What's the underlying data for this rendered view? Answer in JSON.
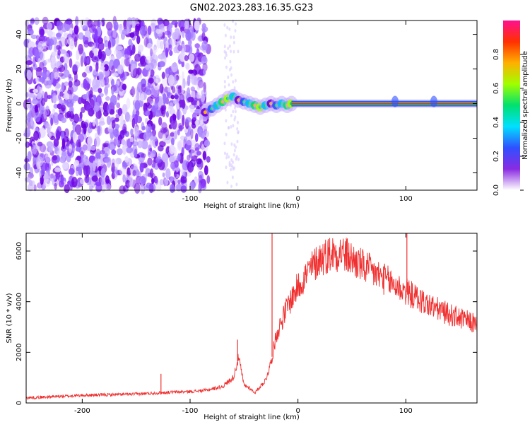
{
  "figure": {
    "title": "GN02.2023.283.16.35.G23"
  },
  "colors": {
    "snr_line": "#f03030",
    "frame": "#000000",
    "carrier": "#e8303a"
  },
  "chart_data": [
    {
      "type": "heatmap",
      "xlabel": "Height of straight line (km)",
      "ylabel": "Frequency (Hz)",
      "xlim": [
        -252,
        166
      ],
      "ylim": [
        -50,
        48
      ],
      "xticks": [
        -200,
        -100,
        0,
        100
      ],
      "yticks": [
        -40,
        -20,
        0,
        20,
        40
      ],
      "noise_region_x": [
        -252,
        -83
      ],
      "sparse_region_x": [
        -68,
        -55
      ],
      "trace": {
        "x": [
          -86,
          -80,
          -75,
          -70,
          -65,
          -60,
          -55,
          -50,
          -45,
          -40,
          -35,
          -30,
          -25,
          -20,
          -15,
          -10,
          -6
        ],
        "y": [
          -5,
          -3,
          -1,
          1,
          3,
          4,
          2,
          1,
          0,
          -1,
          -2,
          -1,
          0,
          -1,
          0,
          -1,
          0
        ],
        "carrier_x": [
          -6,
          166
        ],
        "carrier_y": 0,
        "bursts_x": [
          90,
          126
        ]
      },
      "colorbar": {
        "label": "Normalized spectral amplitude",
        "ticks": [
          0.0,
          0.2,
          0.4,
          0.6,
          0.8
        ],
        "range": [
          0,
          1
        ],
        "gradient": [
          "#ffffff",
          "#8a2be2",
          "#3050ff",
          "#00e0ff",
          "#00e070",
          "#a0ff00",
          "#ffb000",
          "#ff3000",
          "#ff1090"
        ]
      }
    },
    {
      "type": "line",
      "xlabel": "Height of straight line (km)",
      "ylabel": "SNR (10 * v/v)",
      "xlim": [
        -252,
        166
      ],
      "ylim": [
        0,
        6700
      ],
      "xticks": [
        -200,
        -100,
        0,
        100
      ],
      "yticks": [
        0,
        2000,
        4000,
        6000
      ],
      "series": [
        {
          "x": [
            -252,
            -200,
            -150,
            -120,
            -100,
            -85,
            -70,
            -60,
            -55,
            -50,
            -45,
            -40,
            -30,
            -25,
            -20,
            -10,
            0,
            10,
            20,
            30,
            40,
            60,
            80,
            100,
            120,
            140,
            166
          ],
          "y": [
            200,
            300,
            350,
            420,
            450,
            500,
            650,
            1000,
            1800,
            700,
            600,
            400,
            900,
            1600,
            2700,
            3800,
            4600,
            5200,
            5700,
            5900,
            5950,
            5400,
            4900,
            4400,
            3900,
            3500,
            3100
          ],
          "spikes": [
            {
              "x": -56,
              "y": 2500
            },
            {
              "x": -24,
              "y": 6700
            },
            {
              "x": 101,
              "y": 6700
            },
            {
              "x": -127,
              "y": 1150
            }
          ]
        }
      ]
    }
  ]
}
